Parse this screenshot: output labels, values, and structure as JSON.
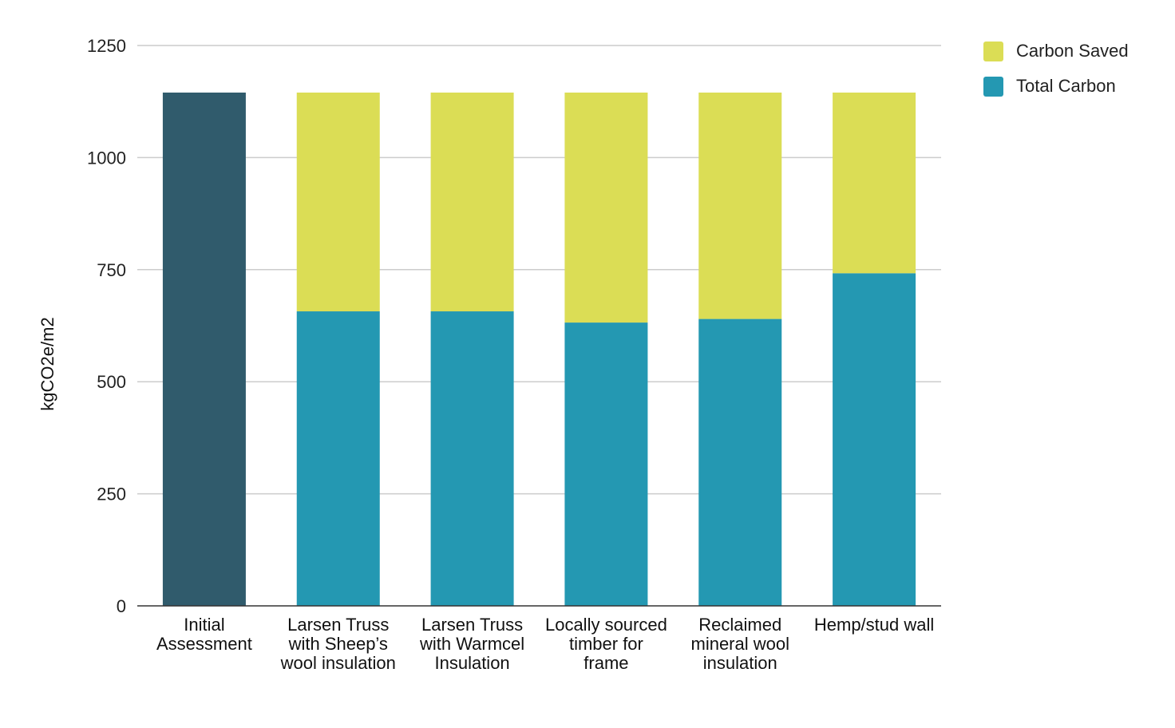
{
  "chart_data": {
    "type": "bar",
    "stacked": true,
    "categories": [
      "Initial Assessment",
      "Larsen Truss with Sheep’s wool insulation",
      "Larsen Truss with Warmcel Insulation",
      "Locally sourced timber for frame",
      "Reclaimed mineral wool insulation",
      "Hemp/stud wall"
    ],
    "series": [
      {
        "name": "Total Carbon",
        "values": [
          1145,
          657,
          657,
          632,
          640,
          742
        ],
        "color": "#2498b2"
      },
      {
        "name": "Carbon Saved",
        "values": [
          0,
          488,
          488,
          513,
          505,
          403
        ],
        "color": "#dbdd55"
      }
    ],
    "first_bar_color": "#305b6c",
    "ylabel": "kgCO2e/m2",
    "ylim": [
      0,
      1250
    ],
    "yticks": [
      0,
      250,
      500,
      750,
      1000,
      1250
    ],
    "grid": true,
    "legend_position": "top-right",
    "legend_order": [
      "Carbon Saved",
      "Total Carbon"
    ]
  }
}
